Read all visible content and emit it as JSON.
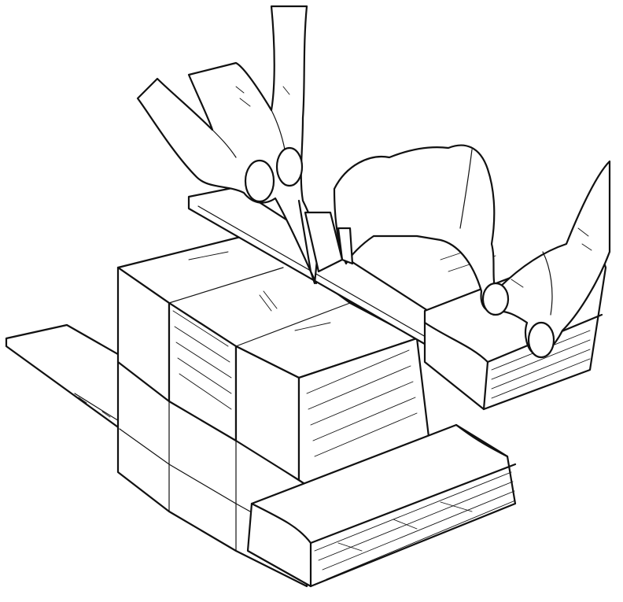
{
  "image": {
    "subject": "line-drawing",
    "ink_color": "#111111",
    "paper_color": "#ffffff"
  }
}
